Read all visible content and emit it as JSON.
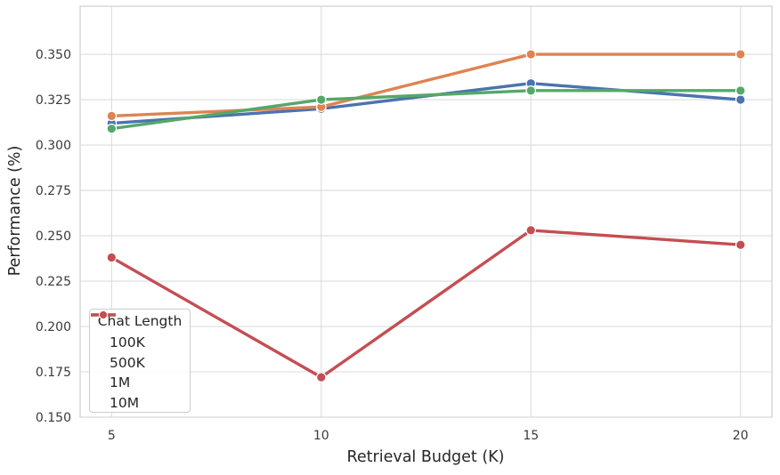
{
  "figure": {
    "background": "#ffffff",
    "plot_border_color": "#d2d2d2",
    "grid_color": "#dcdcdc",
    "tick_label_color": "#3a3a3a",
    "axis_label_color": "#262626",
    "marker_edge_color": "#ffffff"
  },
  "chart_data": {
    "type": "line",
    "title": "",
    "xlabel": "Retrieval Budget (K)",
    "ylabel": "Performance (%)",
    "x": [
      5,
      10,
      15,
      20
    ],
    "xtick_labels": [
      "5",
      "10",
      "15",
      "20"
    ],
    "yticks": [
      0.15,
      0.175,
      0.2,
      0.225,
      0.25,
      0.275,
      0.3,
      0.325,
      0.35
    ],
    "ytick_labels": [
      "0.150",
      "0.175",
      "0.200",
      "0.225",
      "0.250",
      "0.275",
      "0.300",
      "0.325",
      "0.350"
    ],
    "xlim": [
      4.25,
      20.75
    ],
    "ylim": [
      0.15,
      0.3765
    ],
    "grid": true,
    "legend": {
      "title": "Chat Length",
      "position": "lower-left"
    },
    "series": [
      {
        "name": "100K",
        "color": "#4C72B0",
        "values": [
          0.312,
          0.32,
          0.334,
          0.325
        ]
      },
      {
        "name": "500K",
        "color": "#DD8452",
        "values": [
          0.316,
          0.321,
          0.35,
          0.35
        ]
      },
      {
        "name": "1M",
        "color": "#55A868",
        "values": [
          0.309,
          0.325,
          0.33,
          0.33
        ]
      },
      {
        "name": "10M",
        "color": "#C44E52",
        "values": [
          0.238,
          0.172,
          0.253,
          0.245
        ]
      }
    ]
  }
}
